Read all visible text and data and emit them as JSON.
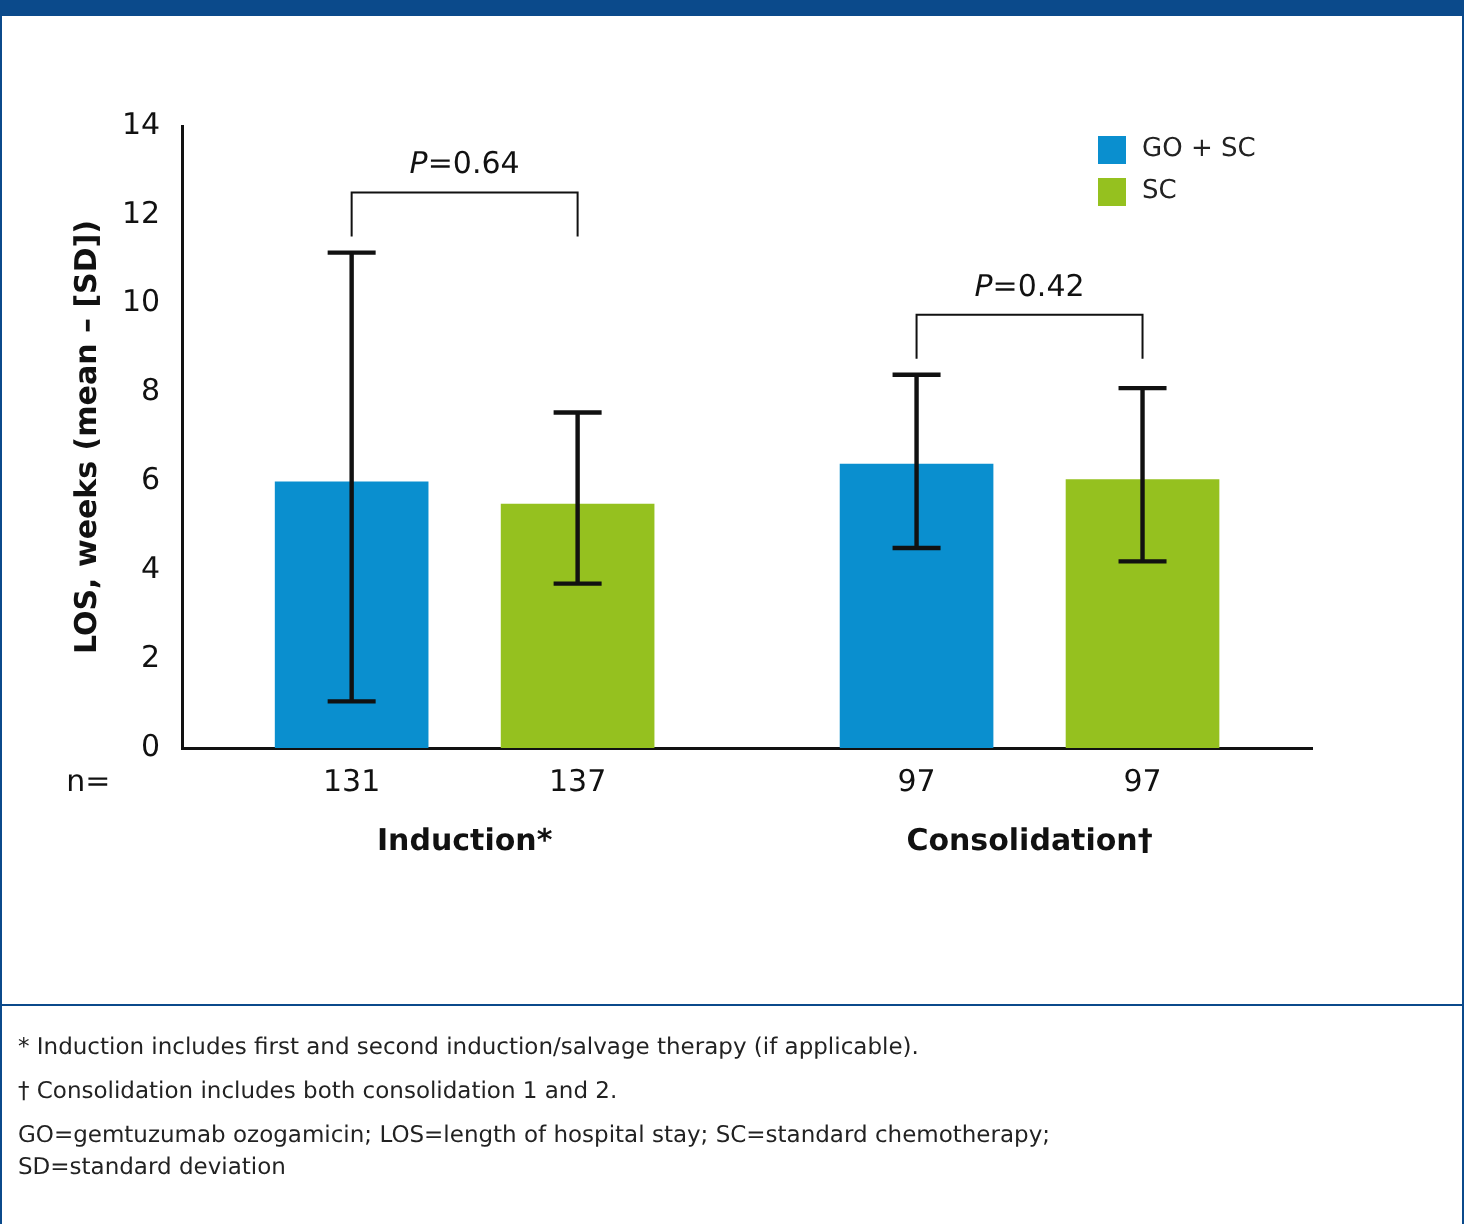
{
  "chart_data": {
    "type": "bar",
    "ylabel": "LOS, weeks (mean – [SD])",
    "categories": [
      "Induction*",
      "Consolidation†"
    ],
    "series": [
      {
        "name": "GO + SC",
        "color": "#0a8fcf",
        "values": [
          6.0,
          6.4
        ],
        "errors": [
          [
            1.05,
            11.15
          ],
          [
            4.5,
            8.4
          ]
        ]
      },
      {
        "name": "SC",
        "color": "#95c11f",
        "values": [
          5.5,
          6.05
        ],
        "errors": [
          [
            3.7,
            7.55
          ],
          [
            4.2,
            8.1
          ]
        ]
      }
    ],
    "ylim": [
      0,
      14
    ],
    "yticks": [
      0,
      2,
      4,
      6,
      8,
      10,
      12,
      14
    ],
    "grid": false,
    "legend": "top right",
    "annotations": [
      "P=0.64",
      "P=0.42",
      "n=",
      "131",
      "137",
      "97",
      "97",
      "* Induction includes first and second induction/salvage therapy (if applicable).",
      "† Consolidation includes both consolidation 1 and 2.",
      "GO=gemtuzumab ozogamicin; LOS=length of hospital stay; SC=standard chemotherapy;",
      "SD=standard deviation"
    ]
  }
}
